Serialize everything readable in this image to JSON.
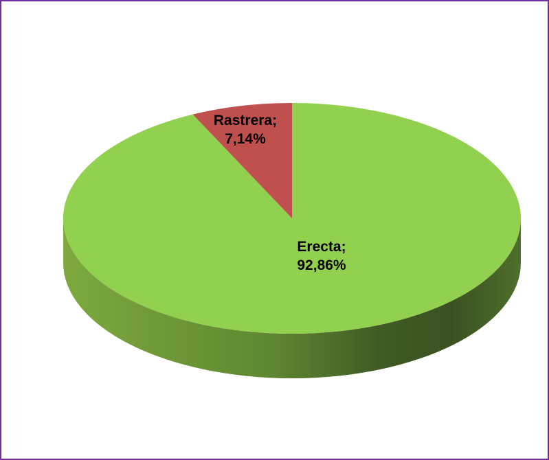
{
  "chart_data": {
    "type": "pie",
    "categories": [
      "Erecta",
      "Rastrera"
    ],
    "values": [
      92.86,
      7.14
    ],
    "value_labels": [
      "92,86%",
      "7,14%"
    ],
    "label_separator": ";",
    "colors": [
      "#92d050",
      "#c0504d"
    ]
  }
}
